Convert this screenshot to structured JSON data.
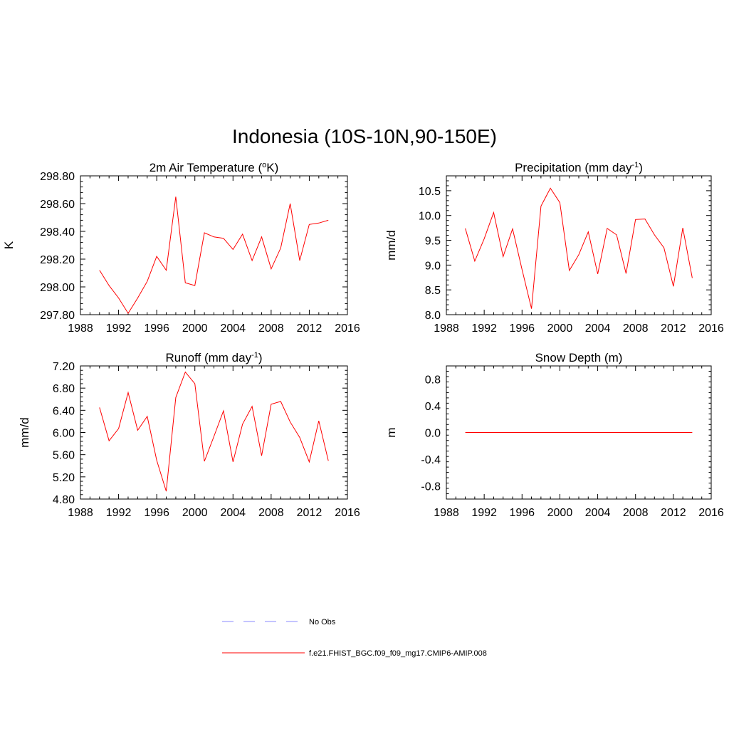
{
  "figure_title": "Indonesia (10S-10N,90-150E)",
  "colors": {
    "model": "#ff0000",
    "obs": "#a0a0ff",
    "axis": "#000000"
  },
  "legend": {
    "obs_label": "No Obs",
    "model_label": "f.e21.FHIST_BGC.f09_f09_mg17.CMIP6-AMIP.008"
  },
  "chart_data": [
    {
      "type": "line",
      "title": "2m Air Temperature (",
      "title_sup_prefix": "o",
      "title_suffix": "K)",
      "ylabel": "K",
      "xlim": [
        1988,
        2016
      ],
      "ylim": [
        297.8,
        298.8
      ],
      "xticks": [
        "1988",
        "1992",
        "1996",
        "2000",
        "2004",
        "2008",
        "2012",
        "2016"
      ],
      "yticks": [
        "297.80",
        "298.00",
        "298.20",
        "298.40",
        "298.60",
        "298.80"
      ],
      "x": [
        1990,
        1991,
        1992,
        1993,
        1994,
        1995,
        1996,
        1997,
        1998,
        1999,
        2000,
        2001,
        2002,
        2003,
        2004,
        2005,
        2006,
        2007,
        2008,
        2009,
        2010,
        2011,
        2012,
        2013,
        2014
      ],
      "values": [
        298.12,
        298.01,
        297.92,
        297.81,
        297.92,
        298.04,
        298.22,
        298.12,
        298.65,
        298.03,
        298.01,
        298.39,
        298.36,
        298.35,
        298.27,
        298.38,
        298.19,
        298.36,
        298.13,
        298.28,
        298.6,
        298.19,
        298.45,
        298.46,
        298.48
      ]
    },
    {
      "type": "line",
      "title": "Precipitation (mm day",
      "title_sup": "-1",
      "title_suffix": ")",
      "ylabel": "mm/d",
      "xlim": [
        1988,
        2016
      ],
      "ylim": [
        8.0,
        10.8
      ],
      "xticks": [
        "1988",
        "1992",
        "1996",
        "2000",
        "2004",
        "2008",
        "2012",
        "2016"
      ],
      "yticks": [
        "8.0",
        "8.5",
        "9.0",
        "9.5",
        "10.0",
        "10.5"
      ],
      "x": [
        1990,
        1991,
        1992,
        1993,
        1994,
        1995,
        1996,
        1997,
        1998,
        1999,
        2000,
        2001,
        2002,
        2003,
        2004,
        2005,
        2006,
        2007,
        2008,
        2009,
        2010,
        2011,
        2012,
        2013,
        2014
      ],
      "values": [
        9.74,
        9.08,
        9.53,
        10.06,
        9.17,
        9.73,
        8.91,
        8.12,
        10.19,
        10.55,
        10.26,
        8.89,
        9.21,
        9.67,
        8.82,
        9.74,
        9.61,
        8.83,
        9.92,
        9.93,
        9.61,
        9.35,
        8.57,
        9.75,
        8.74
      ]
    },
    {
      "type": "line",
      "title": "Runoff (mm day",
      "title_sup": "-1",
      "title_suffix": ")",
      "ylabel": "mm/d",
      "xlim": [
        1988,
        2016
      ],
      "ylim": [
        4.8,
        7.2
      ],
      "xticks": [
        "1988",
        "1992",
        "1996",
        "2000",
        "2004",
        "2008",
        "2012",
        "2016"
      ],
      "yticks": [
        "4.80",
        "5.20",
        "5.60",
        "6.00",
        "6.40",
        "6.80",
        "7.20"
      ],
      "x": [
        1990,
        1991,
        1992,
        1993,
        1994,
        1995,
        1996,
        1997,
        1998,
        1999,
        2000,
        2001,
        2002,
        2003,
        2004,
        2005,
        2006,
        2007,
        2008,
        2009,
        2010,
        2011,
        2012,
        2013,
        2014
      ],
      "values": [
        6.45,
        5.85,
        6.07,
        6.72,
        6.04,
        6.29,
        5.5,
        4.94,
        6.63,
        7.09,
        6.88,
        5.48,
        5.93,
        6.39,
        5.47,
        6.15,
        6.47,
        5.58,
        6.51,
        6.56,
        6.19,
        5.91,
        5.47,
        6.21,
        5.49
      ]
    },
    {
      "type": "line",
      "title": "Snow Depth (m)",
      "ylabel": "m",
      "xlim": [
        1988,
        2016
      ],
      "ylim": [
        -1.0,
        1.0
      ],
      "xticks": [
        "1988",
        "1992",
        "1996",
        "2000",
        "2004",
        "2008",
        "2012",
        "2016"
      ],
      "yticks": [
        "-0.8",
        "-0.4",
        "0.0",
        "0.4",
        "0.8"
      ],
      "x": [
        1990,
        1991,
        1992,
        1993,
        1994,
        1995,
        1996,
        1997,
        1998,
        1999,
        2000,
        2001,
        2002,
        2003,
        2004,
        2005,
        2006,
        2007,
        2008,
        2009,
        2010,
        2011,
        2012,
        2013,
        2014
      ],
      "values": [
        0,
        0,
        0,
        0,
        0,
        0,
        0,
        0,
        0,
        0,
        0,
        0,
        0,
        0,
        0,
        0,
        0,
        0,
        0,
        0,
        0,
        0,
        0,
        0,
        0
      ]
    }
  ]
}
